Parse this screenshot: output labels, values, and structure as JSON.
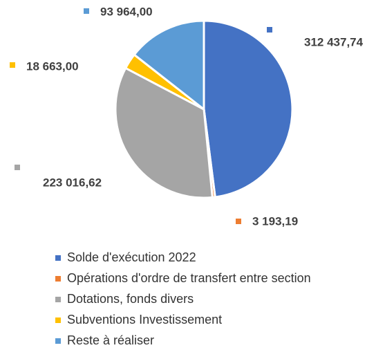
{
  "chart_data": {
    "type": "pie",
    "categories": [
      "Solde d'exécution 2022",
      "Opérations d'ordre de transfert entre section",
      "Dotations, fonds divers",
      "Subventions Investissement",
      "Reste à réaliser"
    ],
    "values": [
      312437.74,
      3193.19,
      223016.62,
      18663.0,
      93964.0
    ],
    "value_labels": [
      "312 437,74",
      "3 193,19",
      "223 016,62",
      "18 663,00",
      "93 964,00"
    ],
    "colors": [
      "#4472c4",
      "#ed7d31",
      "#a5a5a5",
      "#ffc000",
      "#5b9bd5"
    ],
    "legend": "bottom"
  }
}
